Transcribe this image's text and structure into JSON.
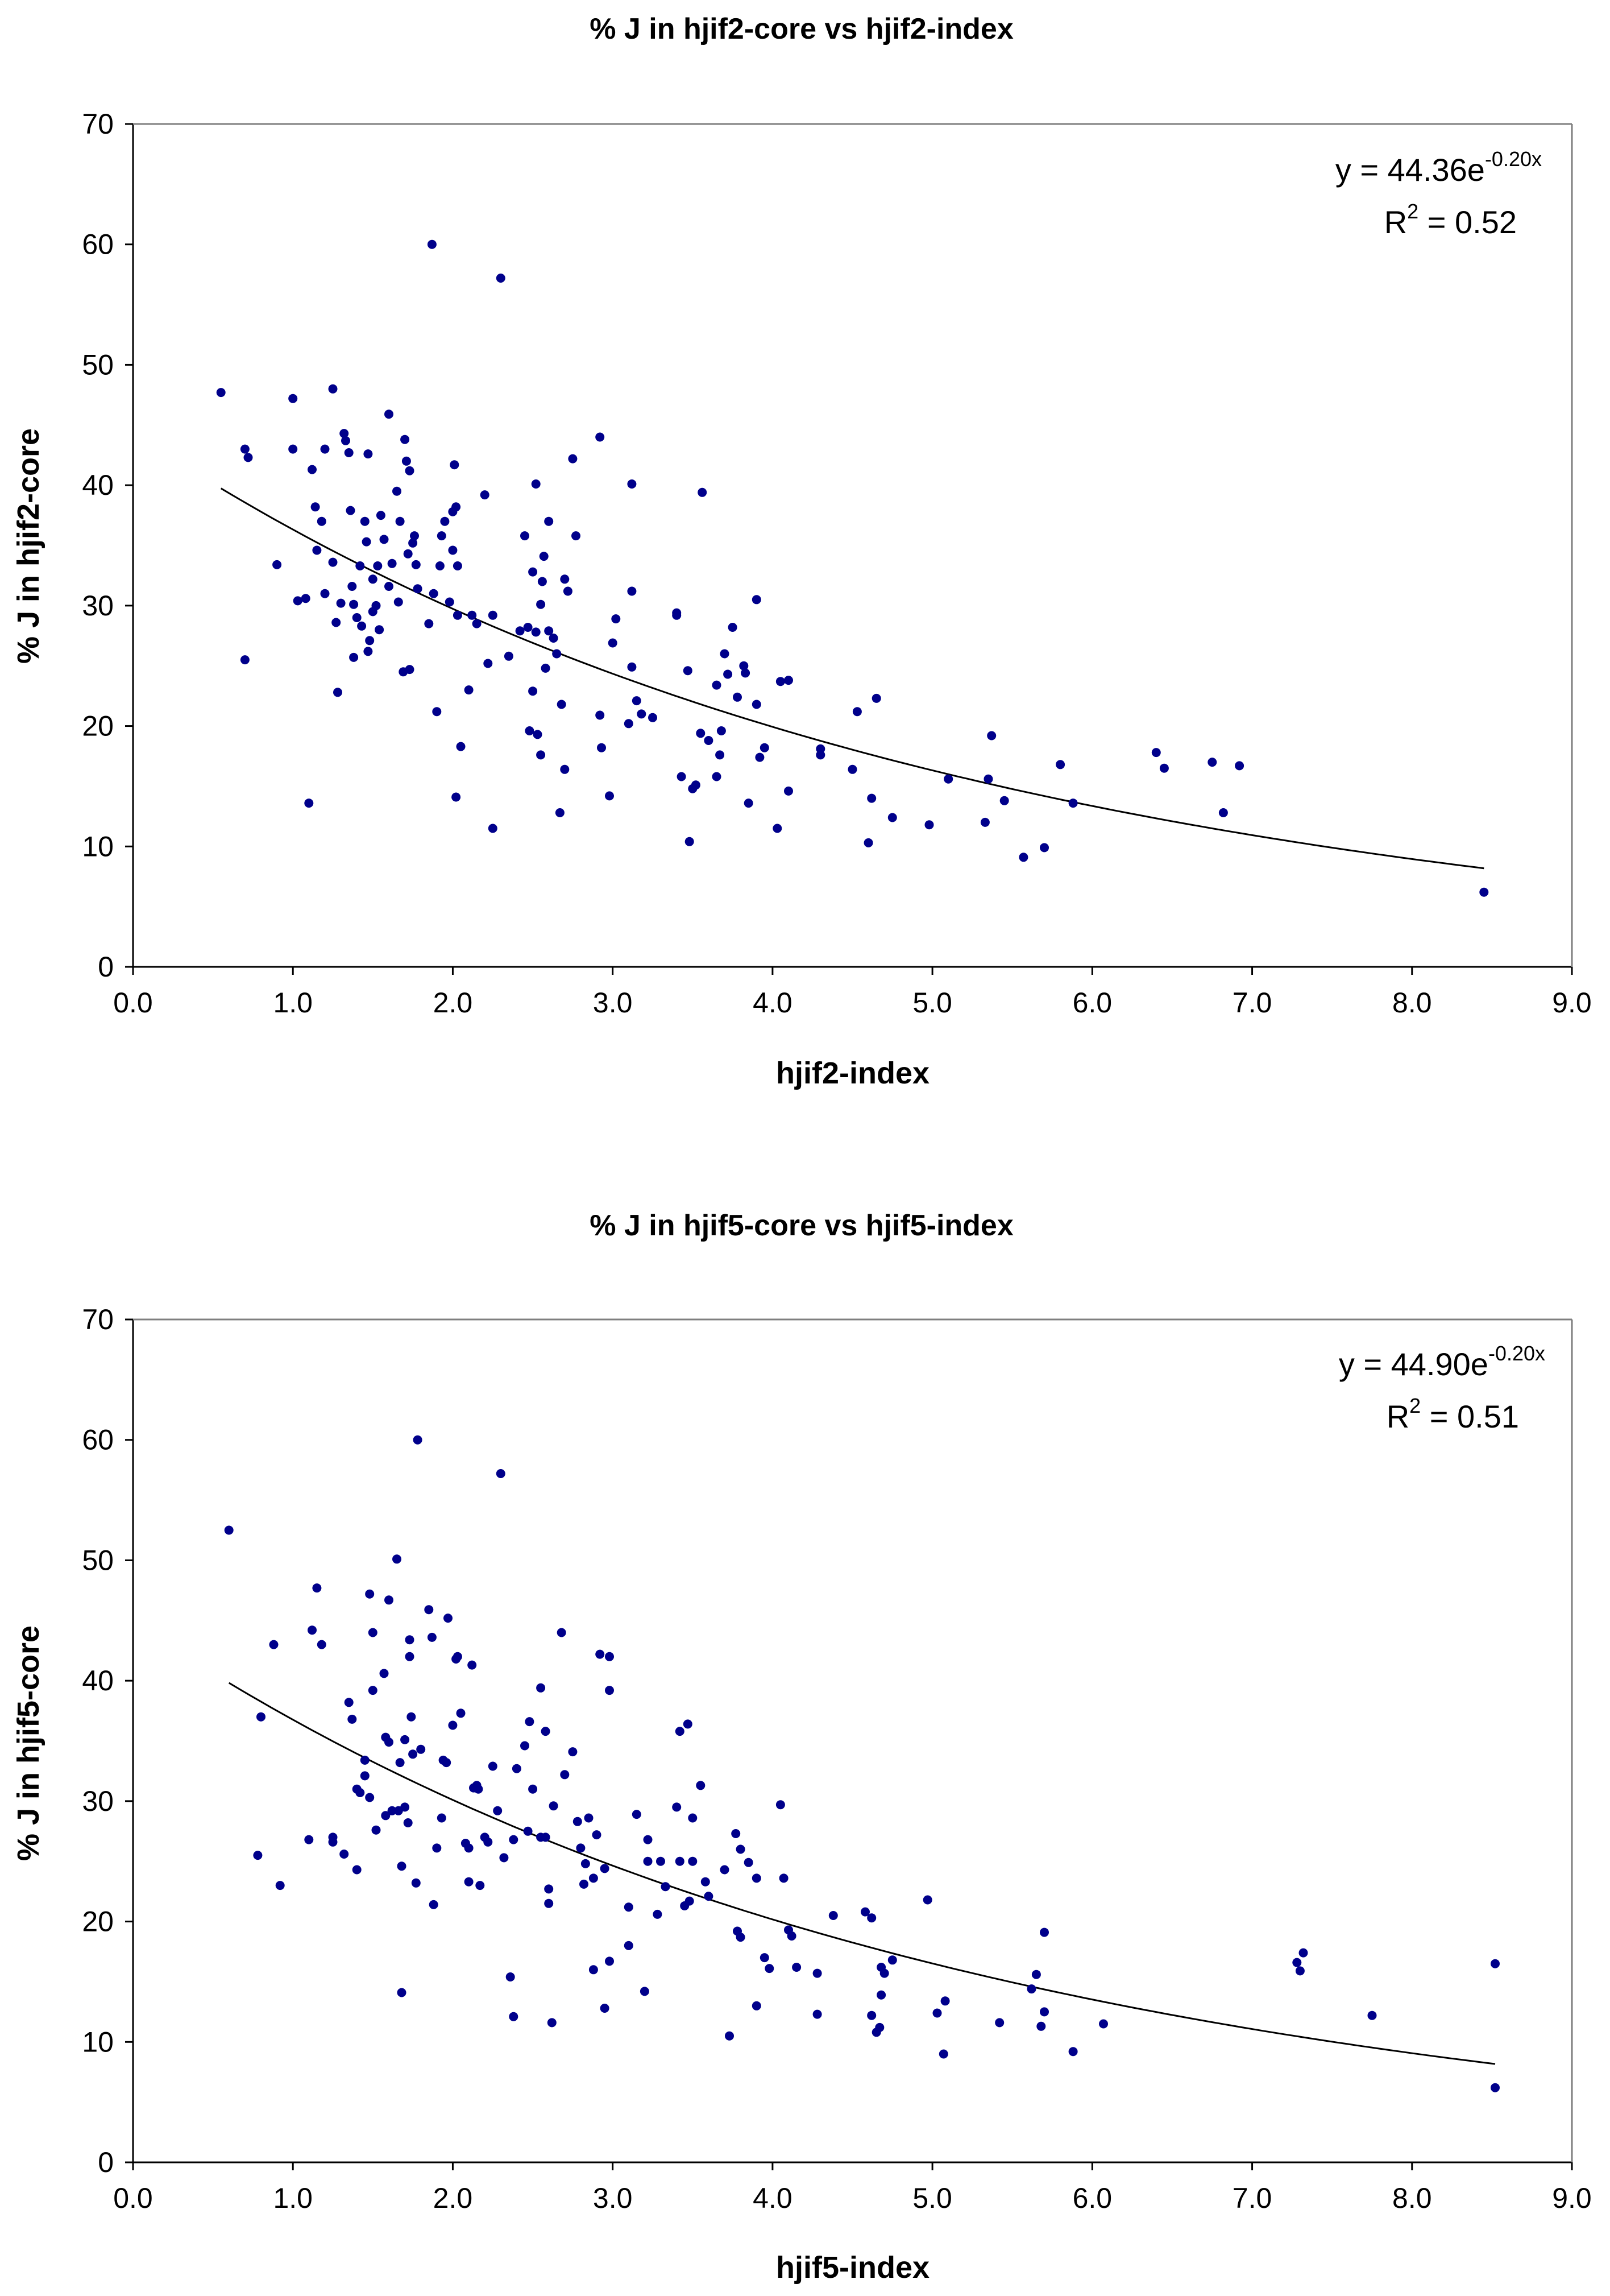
{
  "chart_data": [
    {
      "type": "scatter",
      "title": "% J in hjif2-core vs hjif2-index",
      "xlabel": "hjif2-index",
      "ylabel": "% J in hjif2-core",
      "xlim": [
        0,
        9
      ],
      "ylim": [
        0,
        70
      ],
      "x_ticks": [
        "0.0",
        "1.0",
        "2.0",
        "3.0",
        "4.0",
        "5.0",
        "6.0",
        "7.0",
        "8.0",
        "9.0"
      ],
      "y_ticks": [
        "0",
        "10",
        "20",
        "30",
        "40",
        "50",
        "60",
        "70"
      ],
      "grid": false,
      "marker_color": "#00008B",
      "trendline": {
        "type": "exponential",
        "a": 44.36,
        "b": -0.2,
        "x_range": [
          0.55,
          8.45
        ],
        "color": "#000000",
        "equation_main": "y = 44.36e",
        "equation_exp": "-0.20x",
        "r2_main": "R",
        "r2_sup": "2",
        "r2_value": " = 0.52"
      },
      "points": [
        [
          0.55,
          47.7
        ],
        [
          0.7,
          43.0
        ],
        [
          0.72,
          42.3
        ],
        [
          0.7,
          25.5
        ],
        [
          0.9,
          33.4
        ],
        [
          1.0,
          47.2
        ],
        [
          1.0,
          43.0
        ],
        [
          1.03,
          30.4
        ],
        [
          1.08,
          30.6
        ],
        [
          1.1,
          13.6
        ],
        [
          1.12,
          41.3
        ],
        [
          1.14,
          38.2
        ],
        [
          1.15,
          34.6
        ],
        [
          1.18,
          37.0
        ],
        [
          1.2,
          31.0
        ],
        [
          1.2,
          43.0
        ],
        [
          1.25,
          48.0
        ],
        [
          1.25,
          33.6
        ],
        [
          1.27,
          28.6
        ],
        [
          1.28,
          22.8
        ],
        [
          1.3,
          30.2
        ],
        [
          1.32,
          44.3
        ],
        [
          1.33,
          43.7
        ],
        [
          1.35,
          42.7
        ],
        [
          1.36,
          37.9
        ],
        [
          1.37,
          31.6
        ],
        [
          1.38,
          30.1
        ],
        [
          1.38,
          25.7
        ],
        [
          1.4,
          29.0
        ],
        [
          1.42,
          33.3
        ],
        [
          1.43,
          28.3
        ],
        [
          1.45,
          37.0
        ],
        [
          1.46,
          35.3
        ],
        [
          1.47,
          42.6
        ],
        [
          1.47,
          26.2
        ],
        [
          1.48,
          27.1
        ],
        [
          1.5,
          32.2
        ],
        [
          1.5,
          29.5
        ],
        [
          1.52,
          30.0
        ],
        [
          1.53,
          33.3
        ],
        [
          1.54,
          28.0
        ],
        [
          1.55,
          37.5
        ],
        [
          1.57,
          35.5
        ],
        [
          1.6,
          45.9
        ],
        [
          1.6,
          31.6
        ],
        [
          1.62,
          33.5
        ],
        [
          1.65,
          39.5
        ],
        [
          1.66,
          30.3
        ],
        [
          1.67,
          37.0
        ],
        [
          1.69,
          24.5
        ],
        [
          1.7,
          43.8
        ],
        [
          1.71,
          42.0
        ],
        [
          1.72,
          34.3
        ],
        [
          1.73,
          41.2
        ],
        [
          1.73,
          24.7
        ],
        [
          1.75,
          35.2
        ],
        [
          1.76,
          35.8
        ],
        [
          1.77,
          33.4
        ],
        [
          1.78,
          31.4
        ],
        [
          1.85,
          28.5
        ],
        [
          1.87,
          60.0
        ],
        [
          1.88,
          31.0
        ],
        [
          1.9,
          21.2
        ],
        [
          1.92,
          33.3
        ],
        [
          1.93,
          35.8
        ],
        [
          1.95,
          37.0
        ],
        [
          1.98,
          30.3
        ],
        [
          2.0,
          37.8
        ],
        [
          2.0,
          34.6
        ],
        [
          2.01,
          41.7
        ],
        [
          2.02,
          38.2
        ],
        [
          2.03,
          33.3
        ],
        [
          2.03,
          29.2
        ],
        [
          2.02,
          14.1
        ],
        [
          2.05,
          18.3
        ],
        [
          2.1,
          23.0
        ],
        [
          2.12,
          29.2
        ],
        [
          2.15,
          28.5
        ],
        [
          2.2,
          39.2
        ],
        [
          2.22,
          25.2
        ],
        [
          2.25,
          11.5
        ],
        [
          2.25,
          29.2
        ],
        [
          2.3,
          57.2
        ],
        [
          2.35,
          25.8
        ],
        [
          2.42,
          27.9
        ],
        [
          2.45,
          35.8
        ],
        [
          2.47,
          28.2
        ],
        [
          2.48,
          19.6
        ],
        [
          2.5,
          32.8
        ],
        [
          2.5,
          22.9
        ],
        [
          2.52,
          40.1
        ],
        [
          2.52,
          27.8
        ],
        [
          2.53,
          19.3
        ],
        [
          2.55,
          30.1
        ],
        [
          2.55,
          17.6
        ],
        [
          2.56,
          32.0
        ],
        [
          2.57,
          34.1
        ],
        [
          2.58,
          24.8
        ],
        [
          2.6,
          37.0
        ],
        [
          2.6,
          27.9
        ],
        [
          2.63,
          27.3
        ],
        [
          2.65,
          26.0
        ],
        [
          2.67,
          12.8
        ],
        [
          2.68,
          21.8
        ],
        [
          2.7,
          16.4
        ],
        [
          2.7,
          32.2
        ],
        [
          2.72,
          31.2
        ],
        [
          2.75,
          42.2
        ],
        [
          2.77,
          35.8
        ],
        [
          2.92,
          44.0
        ],
        [
          2.92,
          20.9
        ],
        [
          2.93,
          18.2
        ],
        [
          2.98,
          14.2
        ],
        [
          3.0,
          26.9
        ],
        [
          3.02,
          28.9
        ],
        [
          3.1,
          20.2
        ],
        [
          3.12,
          31.2
        ],
        [
          3.12,
          40.1
        ],
        [
          3.12,
          24.9
        ],
        [
          3.15,
          22.1
        ],
        [
          3.18,
          21.0
        ],
        [
          3.25,
          20.7
        ],
        [
          3.4,
          29.4
        ],
        [
          3.4,
          29.2
        ],
        [
          3.43,
          15.8
        ],
        [
          3.47,
          24.6
        ],
        [
          3.48,
          10.4
        ],
        [
          3.5,
          14.8
        ],
        [
          3.52,
          15.1
        ],
        [
          3.55,
          19.4
        ],
        [
          3.56,
          39.4
        ],
        [
          3.6,
          18.8
        ],
        [
          3.65,
          15.8
        ],
        [
          3.65,
          23.4
        ],
        [
          3.67,
          17.6
        ],
        [
          3.68,
          19.6
        ],
        [
          3.7,
          26.0
        ],
        [
          3.72,
          24.3
        ],
        [
          3.75,
          28.2
        ],
        [
          3.78,
          22.4
        ],
        [
          3.82,
          25.0
        ],
        [
          3.83,
          24.4
        ],
        [
          3.85,
          13.6
        ],
        [
          3.9,
          30.5
        ],
        [
          3.9,
          21.8
        ],
        [
          3.92,
          17.4
        ],
        [
          3.95,
          18.2
        ],
        [
          4.03,
          11.5
        ],
        [
          4.05,
          23.7
        ],
        [
          4.1,
          23.8
        ],
        [
          4.1,
          14.6
        ],
        [
          4.3,
          18.1
        ],
        [
          4.3,
          17.6
        ],
        [
          4.5,
          16.4
        ],
        [
          4.53,
          21.2
        ],
        [
          4.6,
          10.3
        ],
        [
          4.62,
          14.0
        ],
        [
          4.65,
          22.3
        ],
        [
          4.75,
          12.4
        ],
        [
          4.98,
          11.8
        ],
        [
          5.1,
          15.6
        ],
        [
          5.33,
          12.0
        ],
        [
          5.35,
          15.6
        ],
        [
          5.37,
          19.2
        ],
        [
          5.45,
          13.8
        ],
        [
          5.57,
          9.1
        ],
        [
          5.7,
          9.9
        ],
        [
          5.8,
          16.8
        ],
        [
          5.88,
          13.6
        ],
        [
          6.4,
          17.8
        ],
        [
          6.45,
          16.5
        ],
        [
          6.75,
          17.0
        ],
        [
          6.82,
          12.8
        ],
        [
          6.92,
          16.7
        ],
        [
          8.45,
          6.2
        ]
      ]
    },
    {
      "type": "scatter",
      "title": "% J in hjif5-core vs hjif5-index",
      "xlabel": "hjif5-index",
      "ylabel": "% J in hjif5-core",
      "xlim": [
        0,
        9
      ],
      "ylim": [
        0,
        70
      ],
      "x_ticks": [
        "0.0",
        "1.0",
        "2.0",
        "3.0",
        "4.0",
        "5.0",
        "6.0",
        "7.0",
        "8.0",
        "9.0"
      ],
      "y_ticks": [
        "0",
        "10",
        "20",
        "30",
        "40",
        "50",
        "60",
        "70"
      ],
      "grid": false,
      "marker_color": "#00008B",
      "trendline": {
        "type": "exponential",
        "a": 44.9,
        "b": -0.2,
        "x_range": [
          0.6,
          8.52
        ],
        "color": "#000000",
        "equation_main": "y = 44.90e",
        "equation_exp": "-0.20x",
        "r2_main": "R",
        "r2_sup": "2",
        "r2_value": " = 0.51"
      },
      "points": [
        [
          0.6,
          52.5
        ],
        [
          0.78,
          25.5
        ],
        [
          0.8,
          37.0
        ],
        [
          0.88,
          43.0
        ],
        [
          0.92,
          23.0
        ],
        [
          1.1,
          26.8
        ],
        [
          1.12,
          44.2
        ],
        [
          1.15,
          47.7
        ],
        [
          1.18,
          43.0
        ],
        [
          1.25,
          27.0
        ],
        [
          1.25,
          26.6
        ],
        [
          1.32,
          25.6
        ],
        [
          1.35,
          38.2
        ],
        [
          1.37,
          36.8
        ],
        [
          1.4,
          24.3
        ],
        [
          1.4,
          31.0
        ],
        [
          1.42,
          30.7
        ],
        [
          1.45,
          33.4
        ],
        [
          1.45,
          32.1
        ],
        [
          1.48,
          47.2
        ],
        [
          1.48,
          30.3
        ],
        [
          1.5,
          44.0
        ],
        [
          1.5,
          39.2
        ],
        [
          1.52,
          27.6
        ],
        [
          1.57,
          40.6
        ],
        [
          1.58,
          35.3
        ],
        [
          1.58,
          28.8
        ],
        [
          1.6,
          46.7
        ],
        [
          1.6,
          34.9
        ],
        [
          1.62,
          29.2
        ],
        [
          1.65,
          50.1
        ],
        [
          1.66,
          29.2
        ],
        [
          1.67,
          33.2
        ],
        [
          1.68,
          24.6
        ],
        [
          1.68,
          14.1
        ],
        [
          1.7,
          29.5
        ],
        [
          1.7,
          35.1
        ],
        [
          1.72,
          28.2
        ],
        [
          1.73,
          43.4
        ],
        [
          1.73,
          42.0
        ],
        [
          1.74,
          37.0
        ],
        [
          1.75,
          33.9
        ],
        [
          1.77,
          23.2
        ],
        [
          1.78,
          60.0
        ],
        [
          1.8,
          34.3
        ],
        [
          1.85,
          45.9
        ],
        [
          1.87,
          43.6
        ],
        [
          1.88,
          21.4
        ],
        [
          1.9,
          26.1
        ],
        [
          1.93,
          28.6
        ],
        [
          1.94,
          33.4
        ],
        [
          1.96,
          33.2
        ],
        [
          1.97,
          45.2
        ],
        [
          2.0,
          36.3
        ],
        [
          2.02,
          41.8
        ],
        [
          2.03,
          42.0
        ],
        [
          2.05,
          37.3
        ],
        [
          2.08,
          26.5
        ],
        [
          2.1,
          26.1
        ],
        [
          2.1,
          23.3
        ],
        [
          2.12,
          41.3
        ],
        [
          2.13,
          31.1
        ],
        [
          2.15,
          31.3
        ],
        [
          2.16,
          31.0
        ],
        [
          2.17,
          23.0
        ],
        [
          2.2,
          27.0
        ],
        [
          2.22,
          26.6
        ],
        [
          2.25,
          32.9
        ],
        [
          2.28,
          29.2
        ],
        [
          2.3,
          57.2
        ],
        [
          2.32,
          25.3
        ],
        [
          2.36,
          15.4
        ],
        [
          2.38,
          12.1
        ],
        [
          2.38,
          26.8
        ],
        [
          2.4,
          32.7
        ],
        [
          2.45,
          34.6
        ],
        [
          2.47,
          27.5
        ],
        [
          2.48,
          36.6
        ],
        [
          2.5,
          31.0
        ],
        [
          2.55,
          39.4
        ],
        [
          2.55,
          27.0
        ],
        [
          2.58,
          35.8
        ],
        [
          2.58,
          27.0
        ],
        [
          2.6,
          22.7
        ],
        [
          2.6,
          21.5
        ],
        [
          2.62,
          11.6
        ],
        [
          2.63,
          29.6
        ],
        [
          2.68,
          44.0
        ],
        [
          2.7,
          32.2
        ],
        [
          2.75,
          34.1
        ],
        [
          2.78,
          28.3
        ],
        [
          2.8,
          26.1
        ],
        [
          2.82,
          23.1
        ],
        [
          2.83,
          24.8
        ],
        [
          2.85,
          28.6
        ],
        [
          2.88,
          23.6
        ],
        [
          2.88,
          16.0
        ],
        [
          2.9,
          27.2
        ],
        [
          2.92,
          42.2
        ],
        [
          2.95,
          24.4
        ],
        [
          2.95,
          12.8
        ],
        [
          2.98,
          39.2
        ],
        [
          2.98,
          42.0
        ],
        [
          2.98,
          16.7
        ],
        [
          3.1,
          18.0
        ],
        [
          3.1,
          21.2
        ],
        [
          3.15,
          28.9
        ],
        [
          3.2,
          14.2
        ],
        [
          3.22,
          25.0
        ],
        [
          3.22,
          26.8
        ],
        [
          3.28,
          20.6
        ],
        [
          3.3,
          25.0
        ],
        [
          3.33,
          22.9
        ],
        [
          3.4,
          29.5
        ],
        [
          3.42,
          35.8
        ],
        [
          3.42,
          25.0
        ],
        [
          3.45,
          21.3
        ],
        [
          3.47,
          36.4
        ],
        [
          3.48,
          21.7
        ],
        [
          3.5,
          28.6
        ],
        [
          3.5,
          25.0
        ],
        [
          3.55,
          31.3
        ],
        [
          3.58,
          23.3
        ],
        [
          3.6,
          22.1
        ],
        [
          3.7,
          24.3
        ],
        [
          3.73,
          10.5
        ],
        [
          3.77,
          27.3
        ],
        [
          3.78,
          19.2
        ],
        [
          3.8,
          26.0
        ],
        [
          3.8,
          18.7
        ],
        [
          3.85,
          24.9
        ],
        [
          3.9,
          13.0
        ],
        [
          3.9,
          23.6
        ],
        [
          3.95,
          17.0
        ],
        [
          3.98,
          16.1
        ],
        [
          4.05,
          29.7
        ],
        [
          4.07,
          23.6
        ],
        [
          4.1,
          19.3
        ],
        [
          4.12,
          18.8
        ],
        [
          4.15,
          16.2
        ],
        [
          4.28,
          15.7
        ],
        [
          4.28,
          12.3
        ],
        [
          4.38,
          20.5
        ],
        [
          4.58,
          20.8
        ],
        [
          4.62,
          20.3
        ],
        [
          4.62,
          12.2
        ],
        [
          4.65,
          10.8
        ],
        [
          4.67,
          11.2
        ],
        [
          4.68,
          13.9
        ],
        [
          4.68,
          16.2
        ],
        [
          4.7,
          15.7
        ],
        [
          4.75,
          16.8
        ],
        [
          4.97,
          21.8
        ],
        [
          5.03,
          12.4
        ],
        [
          5.07,
          9.0
        ],
        [
          5.08,
          13.4
        ],
        [
          5.42,
          11.6
        ],
        [
          5.62,
          14.4
        ],
        [
          5.65,
          15.6
        ],
        [
          5.68,
          11.3
        ],
        [
          5.7,
          12.5
        ],
        [
          5.7,
          19.1
        ],
        [
          5.88,
          9.2
        ],
        [
          6.07,
          11.5
        ],
        [
          7.28,
          16.6
        ],
        [
          7.3,
          15.9
        ],
        [
          7.32,
          17.4
        ],
        [
          7.75,
          12.2
        ],
        [
          8.52,
          16.5
        ],
        [
          8.52,
          6.2
        ]
      ]
    }
  ]
}
